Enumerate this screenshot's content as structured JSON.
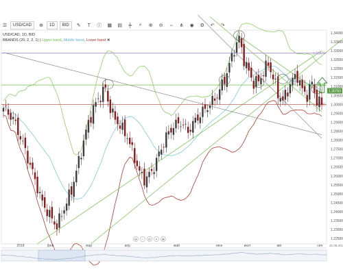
{
  "toolbar": {
    "symbol": "USD/CAD",
    "interval": "1D",
    "price_type": "BID",
    "icons": [
      "menu-icon",
      "crosshair-icon",
      "pen-icon",
      "pencil-icon",
      "text-icon",
      "info-icon",
      "shapes-icon",
      "calendar-icon",
      "bar-type-icon",
      "move-icon",
      "zoom-icon",
      "zoom-in-icon",
      "zoom-out-icon",
      "fit-icon",
      "share-icon",
      "eye-icon",
      "settings-icon",
      "undo-icon",
      "redo-icon"
    ]
  },
  "legend": {
    "title": "USD/CAD, 1D, BID",
    "indicator": "BBANDS (20, 2, 2, 1)",
    "upper": "Upper band",
    "middle": "Middle band",
    "lower": "Lower band"
  },
  "colors": {
    "up_candle": "#3d3d3d",
    "down_candle": "#8b1a1a",
    "upper_band": "#8ed06a",
    "middle_band": "#7ec9e6",
    "lower_band": "#b03a30",
    "trend_line": "#6fbf4a",
    "trend_line_gray": "#8f8f8f",
    "hline_purple": "#a98fc8",
    "hline_green": "#6fbf4a",
    "hline_red": "#c06060",
    "current_price_bg": "#5a9a45",
    "arrow": "#2e8b2e"
  },
  "chart_data": {
    "type": "candlestick",
    "symbol": "USD/CAD",
    "interval": "1D",
    "x_tick_labels": [
      "2018",
      "фев",
      "мар",
      "апр",
      "май",
      "июн",
      "июл",
      "авг",
      "сен"
    ],
    "x_corner_label": "31.08.2018",
    "y_tick_labels": [
      "1.34000",
      "1.33500",
      "1.33000",
      "1.32500",
      "1.32000",
      "1.31500",
      "1.31000",
      "1.30500",
      "1.30000",
      "1.29500",
      "1.29000",
      "1.28500",
      "1.28000",
      "1.27500",
      "1.27000",
      "1.26500",
      "1.26000",
      "1.25500",
      "1.25000",
      "1.24500",
      "1.24000",
      "1.23500",
      "1.23000",
      "1.22500"
    ],
    "ylim": [
      1.222,
      1.3415
    ],
    "horizontal_levels": [
      {
        "label": "1.32870",
        "value": 1.3287,
        "color": "hline_purple"
      },
      {
        "label": "1.31080",
        "value": 1.3108,
        "color": "hline_green"
      },
      {
        "label": "1.30000",
        "value": 1.3,
        "color": "hline_red"
      }
    ],
    "current_price_label": "1.30760",
    "current_price": 1.3076,
    "price_path": [
      [
        0,
        1.298
      ],
      [
        4,
        1.292
      ],
      [
        8,
        1.278
      ],
      [
        12,
        1.262
      ],
      [
        16,
        1.245
      ],
      [
        19,
        1.238
      ],
      [
        22,
        1.232
      ],
      [
        25,
        1.242
      ],
      [
        28,
        1.252
      ],
      [
        31,
        1.268
      ],
      [
        34,
        1.285
      ],
      [
        37,
        1.298
      ],
      [
        40,
        1.305
      ],
      [
        42,
        1.309
      ],
      [
        43,
        1.302
      ],
      [
        45,
        1.294
      ],
      [
        48,
        1.288
      ],
      [
        51,
        1.282
      ],
      [
        53,
        1.274
      ],
      [
        56,
        1.262
      ],
      [
        58,
        1.258
      ],
      [
        61,
        1.262
      ],
      [
        64,
        1.272
      ],
      [
        67,
        1.282
      ],
      [
        70,
        1.288
      ],
      [
        73,
        1.29
      ],
      [
        76,
        1.285
      ],
      [
        79,
        1.291
      ],
      [
        82,
        1.296
      ],
      [
        85,
        1.3
      ],
      [
        88,
        1.305
      ],
      [
        91,
        1.314
      ],
      [
        93,
        1.322
      ],
      [
        95,
        1.331
      ],
      [
        97,
        1.337
      ],
      [
        99,
        1.325
      ],
      [
        101,
        1.318
      ],
      [
        103,
        1.312
      ],
      [
        105,
        1.313
      ],
      [
        107,
        1.318
      ],
      [
        109,
        1.323
      ],
      [
        111,
        1.315
      ],
      [
        113,
        1.306
      ],
      [
        115,
        1.302
      ],
      [
        117,
        1.308
      ],
      [
        119,
        1.314
      ],
      [
        121,
        1.316
      ],
      [
        123,
        1.308
      ],
      [
        125,
        1.305
      ],
      [
        127,
        1.312
      ],
      [
        129,
        1.302
      ],
      [
        131,
        1.3
      ]
    ],
    "highlighted_points": [
      [
        43,
        1.3112
      ],
      [
        97,
        1.3385
      ],
      [
        91,
        1.3136
      ],
      [
        105,
        1.3122
      ],
      [
        129,
        1.3086
      ],
      [
        115,
        1.3142
      ]
    ]
  },
  "navigator": {
    "zoom_icons": [
      "zoom-out-nav-icon",
      "zoom-out-small-icon",
      "zoom-fit-icon",
      "zoom-in-small-icon",
      "zoom-in-nav-icon"
    ]
  }
}
